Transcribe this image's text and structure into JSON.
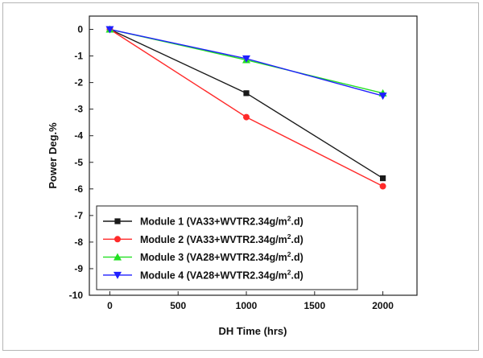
{
  "chart_data": {
    "type": "line",
    "xlabel": "DH Time (hrs)",
    "ylabel": "Power Deg.%",
    "xlim": [
      -150,
      2250
    ],
    "ylim": [
      -10,
      0.5
    ],
    "xticks": [
      0,
      500,
      1000,
      1500,
      2000
    ],
    "yticks": [
      0,
      -1,
      -2,
      -3,
      -4,
      -5,
      -6,
      -7,
      -8,
      -9,
      -10
    ],
    "grid": false,
    "legend_position": "bottom-left",
    "x": [
      0,
      1000,
      2000
    ],
    "series": [
      {
        "name": "Module 1 (VA33+WVTR2.34g/m2.d)",
        "label_main": "Module 1 (VA33+WVTR2.34g/m",
        "label_sup": "2",
        "label_end": ".d)",
        "color": "#1a1a1a",
        "marker": "square",
        "values": [
          0,
          -2.4,
          -5.6
        ]
      },
      {
        "name": "Module 2 (VA33+WVTR2.34g/m2.d)",
        "label_main": "Module 2 (VA33+WVTR2.34g/m",
        "label_sup": "2",
        "label_end": ".d)",
        "color": "#ff2a2a",
        "marker": "circle",
        "values": [
          0,
          -3.3,
          -5.9
        ]
      },
      {
        "name": "Module 3 (VA28+WVTR2.34g/m2.d)",
        "label_main": "Module 3 (VA28+WVTR2.34g/m",
        "label_sup": "2",
        "label_end": ".d)",
        "color": "#22e022",
        "marker": "triangle-up",
        "values": [
          0,
          -1.15,
          -2.4
        ]
      },
      {
        "name": "Module 4 (VA28+WVTR2.34g/m2.d)",
        "label_main": "Module 4 (VA28+WVTR2.34g/m",
        "label_sup": "2",
        "label_end": ".d)",
        "color": "#1f1fff",
        "marker": "triangle-down",
        "values": [
          0,
          -1.1,
          -2.5
        ]
      }
    ]
  }
}
